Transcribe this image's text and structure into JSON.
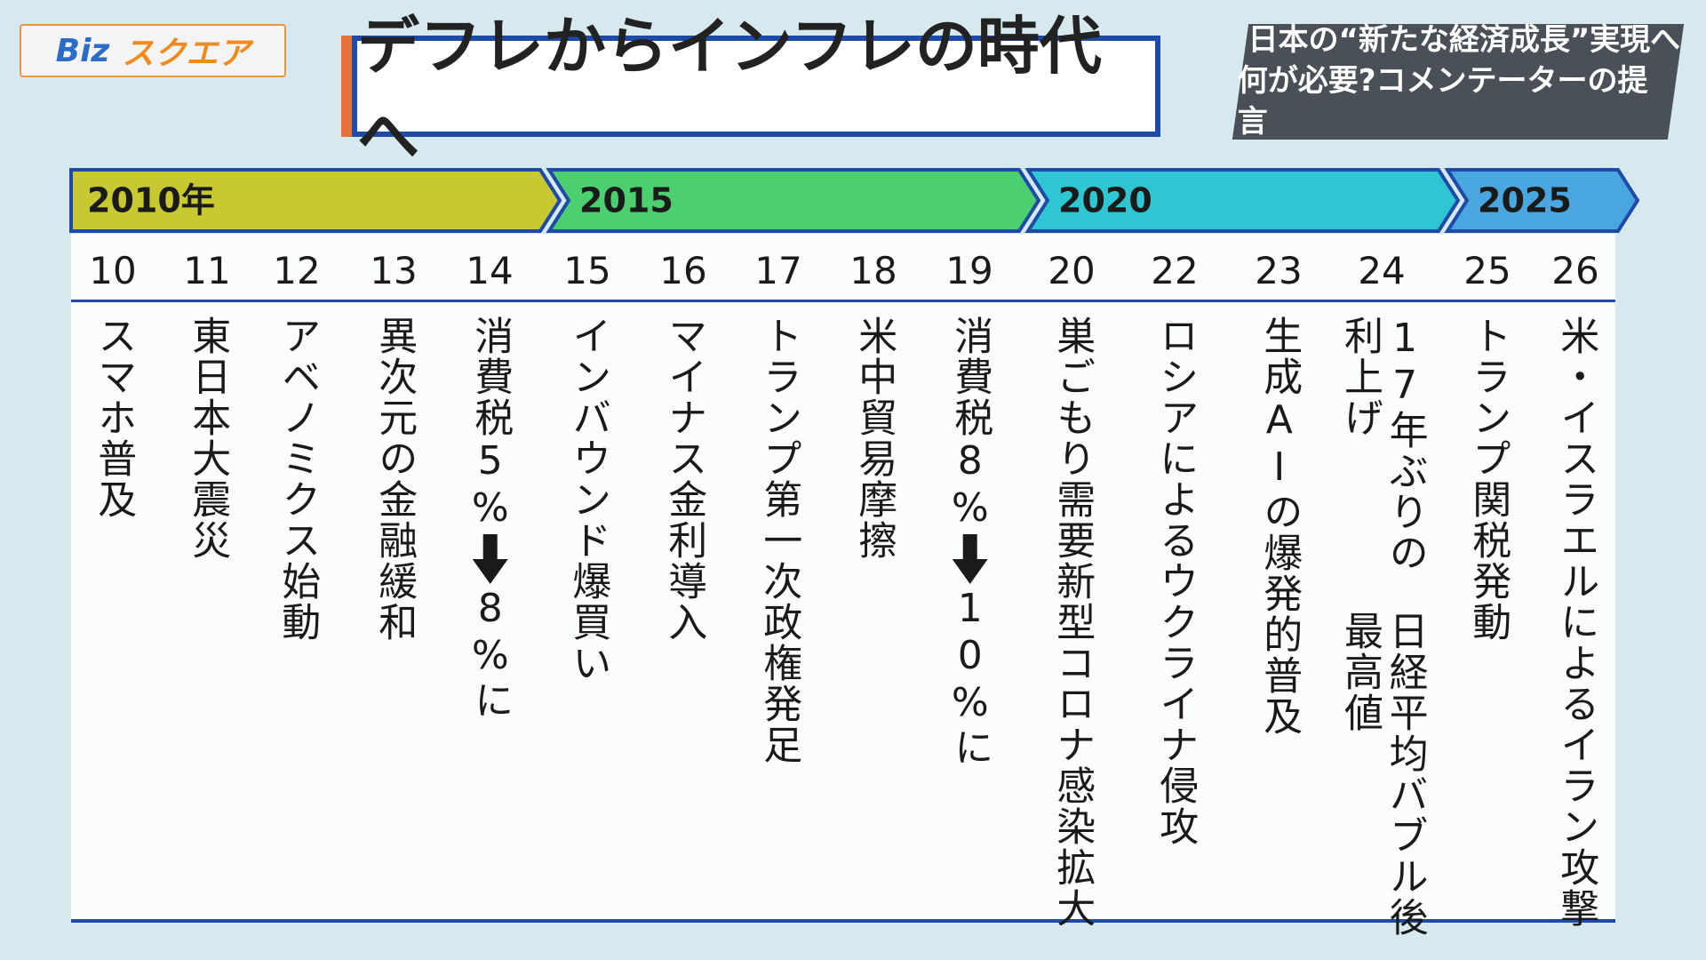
{
  "logo": {
    "left": "Biz",
    "right": "スクエア"
  },
  "title": "デフレからインフレの時代へ",
  "subtitle": [
    "日本の“新たな経済成長”実現へ",
    "何が必要?コメンテーターの提言"
  ],
  "eras": [
    "2010年",
    "2015",
    "2020",
    "2025"
  ],
  "columns": [
    {
      "year": "10",
      "lines": [
        "スマホ普及"
      ]
    },
    {
      "year": "11",
      "lines": [
        "東日本大震災"
      ]
    },
    {
      "year": "12",
      "lines": [
        "アベノミクス始動"
      ]
    },
    {
      "year": "13",
      "lines": [
        "異次元の金融緩和"
      ]
    },
    {
      "year": "14",
      "from": "消費税5%",
      "to": "8%に"
    },
    {
      "year": "15",
      "lines": [
        "インバウンド爆買い"
      ]
    },
    {
      "year": "16",
      "lines": [
        "マイナス金利導入"
      ]
    },
    {
      "year": "17",
      "lines": [
        "トランプ第一次政権発足"
      ]
    },
    {
      "year": "18",
      "lines": [
        "米中貿易摩擦"
      ]
    },
    {
      "year": "19",
      "from": "消費税8%",
      "to": "10%に"
    },
    {
      "year": "20",
      "lines": [
        "巣ごもり需要",
        "新型コロナ感染拡大"
      ]
    },
    {
      "year": "22",
      "lines": [
        "ロシアによるウクライナ侵攻"
      ]
    },
    {
      "year": "23",
      "lines": [
        "生成AIの爆発的普及"
      ]
    },
    {
      "year": "24",
      "lines": [
        "17年ぶりの利上げ",
        "日経平均バブル後最高値"
      ]
    },
    {
      "year": "25",
      "lines": [
        "トランプ関税発動"
      ]
    },
    {
      "year": "26",
      "lines": [
        "米・イスラエルによるイラン攻撃"
      ]
    }
  ]
}
